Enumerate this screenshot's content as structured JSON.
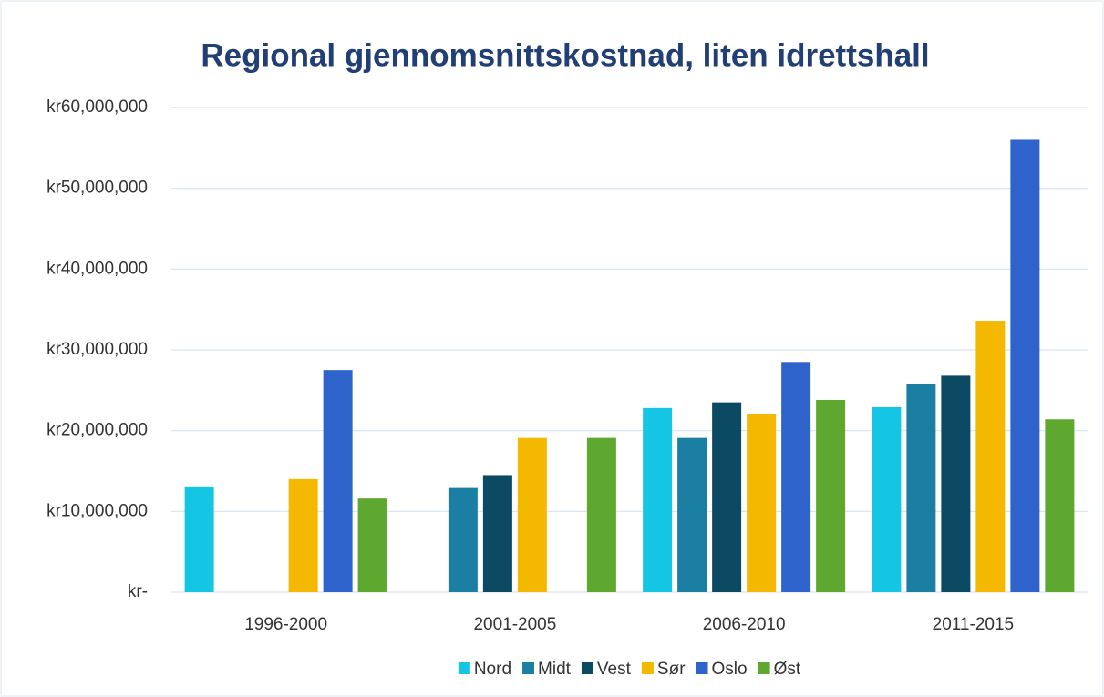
{
  "chart_data": {
    "type": "bar",
    "title": "Regional gjennomsnittskostnad, liten idrettshall",
    "categories": [
      "1996-2000",
      "2001-2005",
      "2006-2010",
      "2011-2015"
    ],
    "series": [
      {
        "name": "Nord",
        "color": "#14c6e4",
        "values": [
          13100000,
          null,
          22800000,
          22900000
        ]
      },
      {
        "name": "Midt",
        "color": "#1b7fa4",
        "values": [
          null,
          12900000,
          19100000,
          25800000
        ]
      },
      {
        "name": "Vest",
        "color": "#0b4a62",
        "values": [
          null,
          14500000,
          23500000,
          26800000
        ]
      },
      {
        "name": "Sør",
        "color": "#f4b800",
        "values": [
          14000000,
          19100000,
          22100000,
          33600000
        ]
      },
      {
        "name": "Oslo",
        "color": "#2e63cc",
        "values": [
          27500000,
          null,
          28500000,
          56000000
        ]
      },
      {
        "name": "Øst",
        "color": "#5ea830",
        "values": [
          11600000,
          19100000,
          23800000,
          21400000
        ]
      }
    ],
    "ylim": [
      0,
      60000000
    ],
    "yticks": [
      {
        "value": 0,
        "label": "kr-"
      },
      {
        "value": 10000000,
        "label": "kr10,000,000"
      },
      {
        "value": 20000000,
        "label": "kr20,000,000"
      },
      {
        "value": 30000000,
        "label": "kr30,000,000"
      },
      {
        "value": 40000000,
        "label": "kr40,000,000"
      },
      {
        "value": 50000000,
        "label": "kr50,000,000"
      },
      {
        "value": 60000000,
        "label": "kr60,000,000"
      }
    ],
    "grid": true,
    "legend": "bottom"
  }
}
